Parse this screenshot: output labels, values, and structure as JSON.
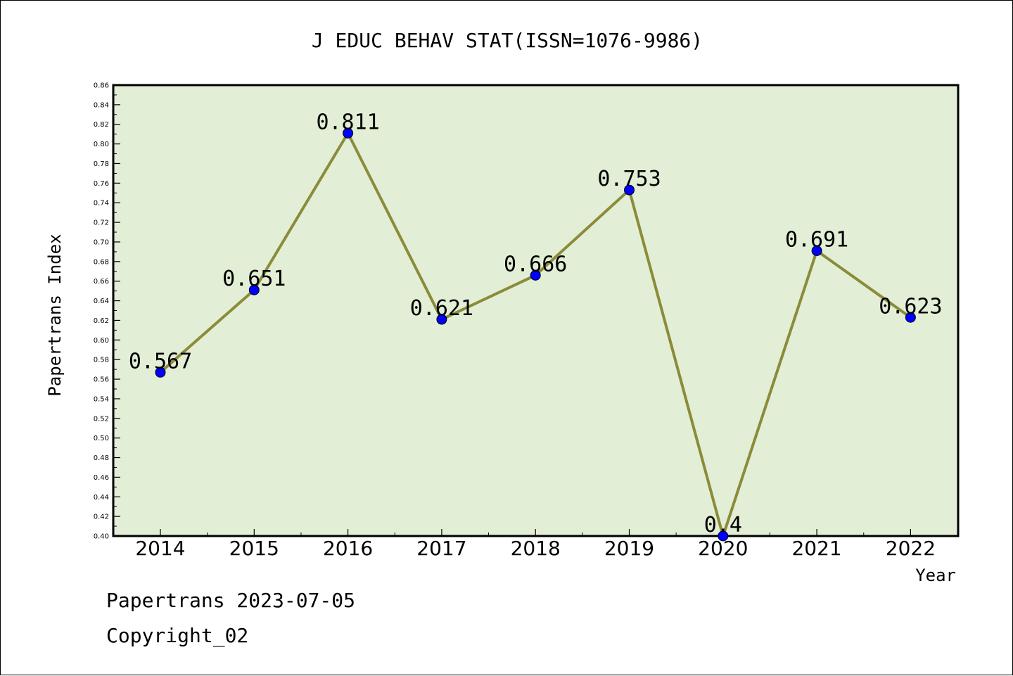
{
  "chart_data": {
    "type": "line",
    "title": "J EDUC BEHAV STAT(ISSN=1076-9986)",
    "xlabel": "Year",
    "ylabel": "Papertrans Index",
    "ylim": [
      0.4,
      0.86
    ],
    "y_ticks": [
      "0.40",
      "0.42",
      "0.44",
      "0.46",
      "0.48",
      "0.50",
      "0.52",
      "0.54",
      "0.56",
      "0.58",
      "0.60",
      "0.62",
      "0.64",
      "0.66",
      "0.68",
      "0.70",
      "0.72",
      "0.74",
      "0.76",
      "0.78",
      "0.80",
      "0.82",
      "0.84",
      "0.86"
    ],
    "categories": [
      "2014",
      "2015",
      "2016",
      "2017",
      "2018",
      "2019",
      "2020",
      "2021",
      "2022"
    ],
    "values": [
      0.567,
      0.651,
      0.811,
      0.621,
      0.666,
      0.753,
      0.4,
      0.691,
      0.623
    ],
    "data_labels": [
      "0.567",
      "0.651",
      "0.811",
      "0.621",
      "0.666",
      "0.753",
      "0.4",
      "0.691",
      "0.623"
    ],
    "grid": false,
    "colors": {
      "plot_background": "#e2efd6",
      "line": "#8b8b3a",
      "marker": "#0000ff",
      "axis": "#000000"
    }
  },
  "footer": {
    "line1": "Papertrans 2023-07-05",
    "line2": "Copyright_02"
  }
}
